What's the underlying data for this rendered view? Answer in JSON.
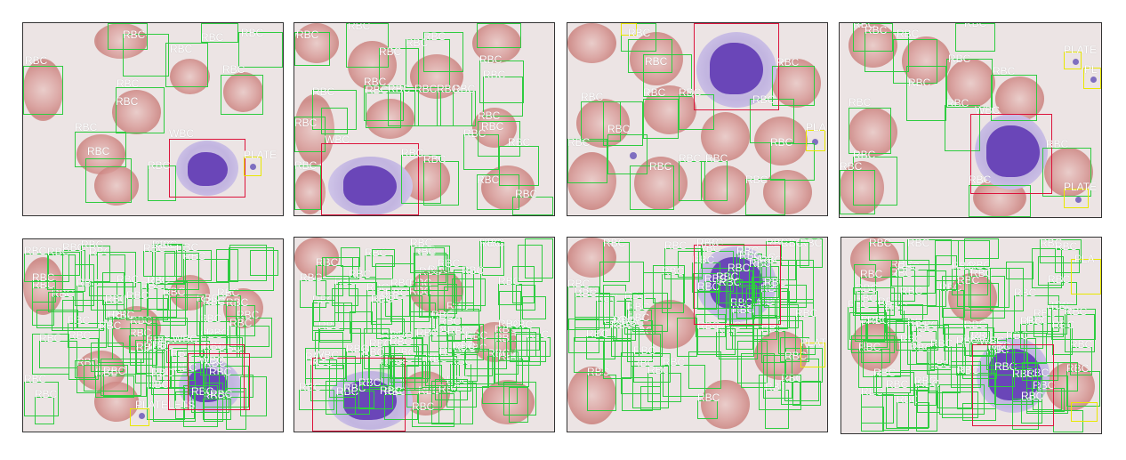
{
  "labels": {
    "rbc": "RBC",
    "wbc": "WBC",
    "platelets": "PLATELETS",
    "platelets_cut1": "PLATE",
    "platelets_cut2": "PLA",
    "platelets_cut3": "PL",
    "platelets_cut4": "PLAT"
  },
  "colors": {
    "rbc_box": "#2ecc40",
    "wbc_box": "#dc143c",
    "platelets_box": "#e8e800",
    "label_text": "#ffffff"
  },
  "panels": [
    {
      "id": "top-1",
      "tag": "rbc-plus-wbc-plus-platelets"
    },
    {
      "id": "top-2",
      "tag": "rbc-plus-wbc"
    },
    {
      "id": "top-3",
      "tag": "rbc-plus-wbc-plus-platelets"
    },
    {
      "id": "top-4",
      "tag": "rbc-plus-wbc-plus-platelets"
    },
    {
      "id": "bottom-1",
      "tag": "dense-detections"
    },
    {
      "id": "bottom-2",
      "tag": "dense-detections"
    },
    {
      "id": "bottom-3",
      "tag": "dense-detections"
    },
    {
      "id": "bottom-4",
      "tag": "dense-detections"
    }
  ]
}
